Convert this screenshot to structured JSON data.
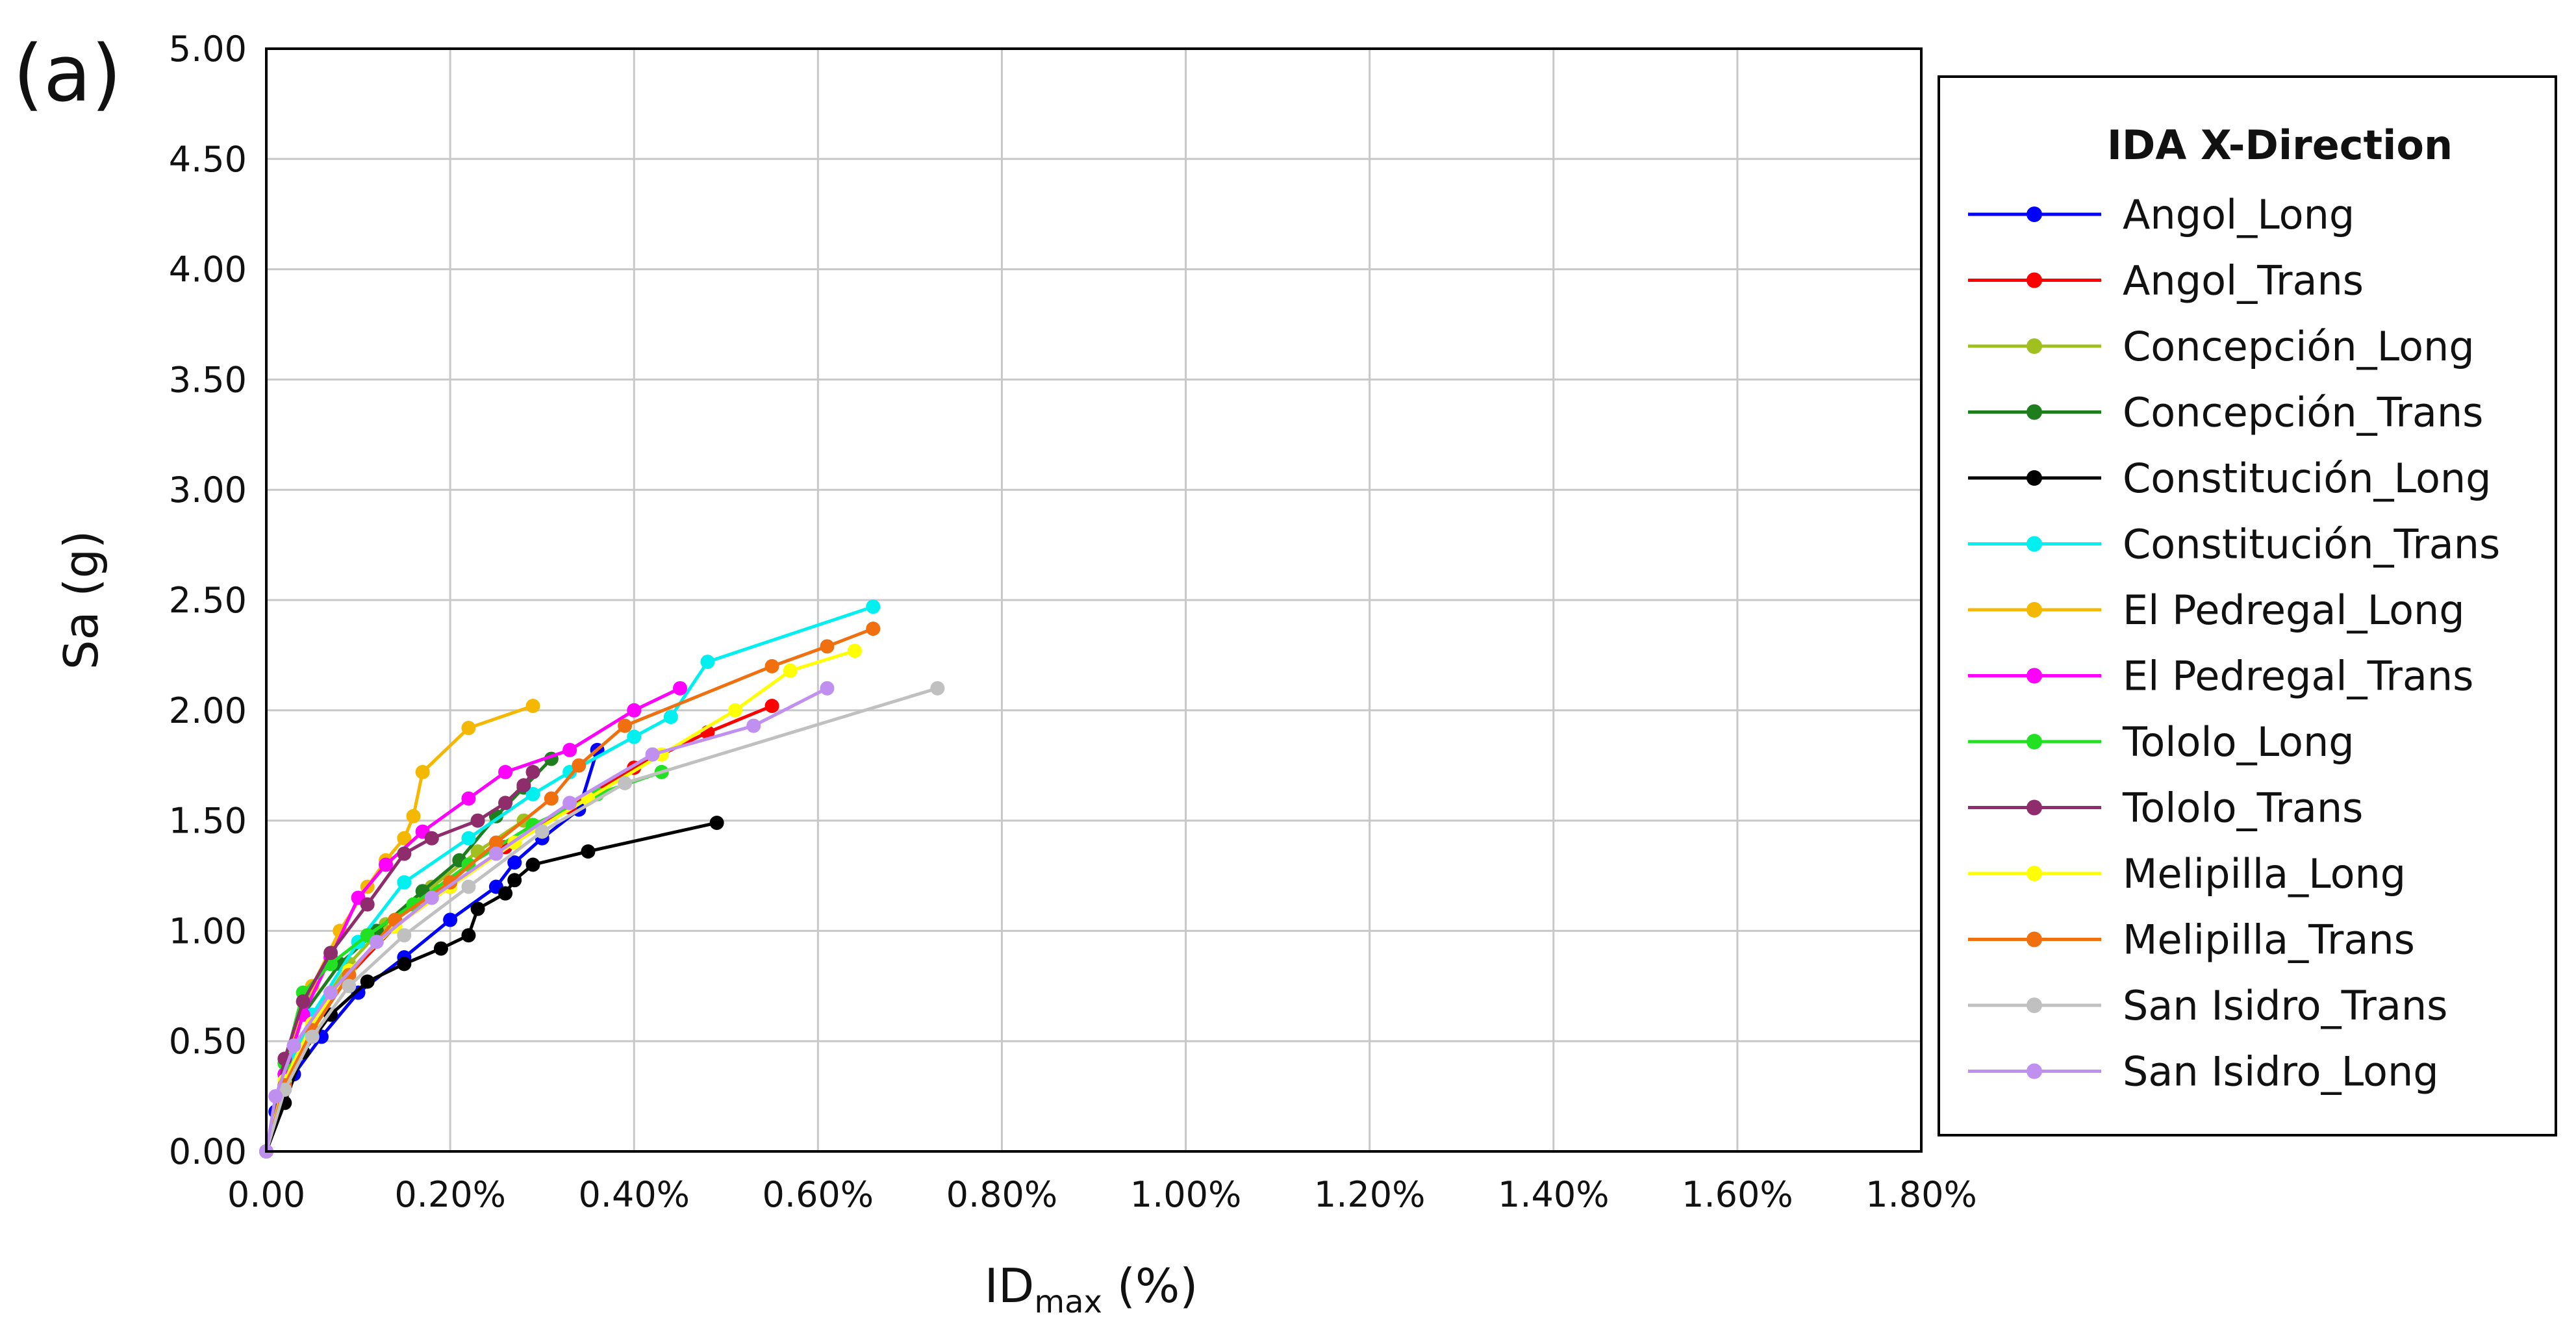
{
  "chart_data": {
    "type": "line",
    "panel_label": "(a)",
    "title": "",
    "xlabel": "ID",
    "xlabel_sub": "max",
    "xlabel_suffix": " (%)",
    "ylabel": "Sa (g)",
    "xlim": [
      0,
      1.8
    ],
    "ylim": [
      0,
      5
    ],
    "x_ticks": [
      0,
      0.2,
      0.4,
      0.6,
      0.8,
      1.0,
      1.2,
      1.4,
      1.6,
      1.8
    ],
    "x_tick_labels": [
      "0.00",
      "0.20%",
      "0.40%",
      "0.60%",
      "0.80%",
      "1.00%",
      "1.20%",
      "1.40%",
      "1.60%",
      "1.80%"
    ],
    "y_ticks": [
      0,
      0.5,
      1.0,
      1.5,
      2.0,
      2.5,
      3.0,
      3.5,
      4.0,
      4.5,
      5.0
    ],
    "y_tick_labels": [
      "0.00",
      "0.50",
      "1.00",
      "1.50",
      "2.00",
      "2.50",
      "3.00",
      "3.50",
      "4.00",
      "4.50",
      "5.00"
    ],
    "grid": true,
    "legend": {
      "title": "IDA X-Direction",
      "position": "right"
    },
    "series": [
      {
        "name": "Angol_Long",
        "color": "#0000ff",
        "x": [
          0,
          0.01,
          0.03,
          0.06,
          0.1,
          0.15,
          0.2,
          0.25,
          0.27,
          0.3,
          0.34,
          0.36
        ],
        "y": [
          0,
          0.18,
          0.35,
          0.52,
          0.72,
          0.88,
          1.05,
          1.2,
          1.31,
          1.42,
          1.55,
          1.82
        ]
      },
      {
        "name": "Angol_Trans",
        "color": "#ff0000",
        "x": [
          0,
          0.02,
          0.05,
          0.09,
          0.14,
          0.2,
          0.26,
          0.33,
          0.4,
          0.48,
          0.55
        ],
        "y": [
          0,
          0.3,
          0.55,
          0.8,
          1.02,
          1.2,
          1.38,
          1.56,
          1.74,
          1.9,
          2.02
        ]
      },
      {
        "name": "Concepción_Long",
        "color": "#a0c020",
        "x": [
          0,
          0.02,
          0.05,
          0.09,
          0.13,
          0.18,
          0.23,
          0.28
        ],
        "y": [
          0,
          0.3,
          0.6,
          0.85,
          1.03,
          1.2,
          1.36,
          1.5
        ]
      },
      {
        "name": "Concepción_Trans",
        "color": "#1e7e1e",
        "x": [
          0,
          0.02,
          0.04,
          0.08,
          0.12,
          0.17,
          0.21,
          0.25,
          0.28,
          0.31
        ],
        "y": [
          0,
          0.35,
          0.62,
          0.85,
          1.0,
          1.18,
          1.32,
          1.52,
          1.65,
          1.78
        ]
      },
      {
        "name": "Constitución_Long",
        "color": "#000000",
        "x": [
          0,
          0.02,
          0.04,
          0.07,
          0.11,
          0.15,
          0.19,
          0.22,
          0.23,
          0.26,
          0.27,
          0.29,
          0.35,
          0.49
        ],
        "y": [
          0,
          0.22,
          0.45,
          0.62,
          0.77,
          0.85,
          0.92,
          0.98,
          1.1,
          1.17,
          1.23,
          1.3,
          1.36,
          1.49
        ]
      },
      {
        "name": "Constitución_Trans",
        "color": "#00f0f0",
        "x": [
          0,
          0.02,
          0.05,
          0.1,
          0.15,
          0.22,
          0.29,
          0.33,
          0.4,
          0.44,
          0.48,
          0.66
        ],
        "y": [
          0,
          0.35,
          0.62,
          0.95,
          1.22,
          1.42,
          1.62,
          1.72,
          1.88,
          1.97,
          2.22,
          2.47
        ]
      },
      {
        "name": "El Pedregal_Long",
        "color": "#f5b800",
        "x": [
          0,
          0.02,
          0.05,
          0.08,
          0.11,
          0.13,
          0.15,
          0.16,
          0.17,
          0.22,
          0.29
        ],
        "y": [
          0,
          0.4,
          0.75,
          1.0,
          1.2,
          1.32,
          1.42,
          1.52,
          1.72,
          1.92,
          2.02
        ]
      },
      {
        "name": "El Pedregal_Trans",
        "color": "#ff00ff",
        "x": [
          0,
          0.02,
          0.04,
          0.07,
          0.1,
          0.13,
          0.17,
          0.22,
          0.26,
          0.33,
          0.4,
          0.45
        ],
        "y": [
          0,
          0.35,
          0.62,
          0.88,
          1.15,
          1.3,
          1.45,
          1.6,
          1.72,
          1.82,
          2.0,
          2.1
        ]
      },
      {
        "name": "Tololo_Long",
        "color": "#22e022",
        "x": [
          0,
          0.02,
          0.04,
          0.07,
          0.11,
          0.16,
          0.22,
          0.29,
          0.36,
          0.43
        ],
        "y": [
          0,
          0.4,
          0.72,
          0.85,
          0.98,
          1.12,
          1.3,
          1.48,
          1.62,
          1.72
        ]
      },
      {
        "name": "Tololo_Trans",
        "color": "#8e2c6c",
        "x": [
          0,
          0.02,
          0.04,
          0.07,
          0.11,
          0.15,
          0.18,
          0.23,
          0.26,
          0.28,
          0.29
        ],
        "y": [
          0,
          0.42,
          0.68,
          0.9,
          1.12,
          1.35,
          1.42,
          1.5,
          1.58,
          1.66,
          1.72
        ]
      },
      {
        "name": "Melipilla_Long",
        "color": "#ffff00",
        "x": [
          0,
          0.02,
          0.05,
          0.09,
          0.14,
          0.2,
          0.27,
          0.35,
          0.43,
          0.51,
          0.57,
          0.64
        ],
        "y": [
          0,
          0.32,
          0.58,
          0.82,
          1.02,
          1.2,
          1.4,
          1.6,
          1.8,
          2.0,
          2.18,
          2.27
        ]
      },
      {
        "name": "Melipilla_Trans",
        "color": "#f07010",
        "x": [
          0,
          0.02,
          0.05,
          0.09,
          0.14,
          0.2,
          0.25,
          0.31,
          0.34,
          0.39,
          0.55,
          0.61,
          0.66
        ],
        "y": [
          0,
          0.3,
          0.55,
          0.8,
          1.05,
          1.22,
          1.4,
          1.6,
          1.75,
          1.93,
          2.2,
          2.29,
          2.37
        ]
      },
      {
        "name": "San Isidro_Trans",
        "color": "#c0c0c0",
        "x": [
          0,
          0.02,
          0.05,
          0.09,
          0.15,
          0.22,
          0.3,
          0.39,
          0.73
        ],
        "y": [
          0,
          0.28,
          0.52,
          0.75,
          0.98,
          1.2,
          1.45,
          1.67,
          2.1
        ]
      },
      {
        "name": "San Isidro_Long",
        "color": "#c090f0",
        "x": [
          0,
          0.01,
          0.03,
          0.07,
          0.12,
          0.18,
          0.25,
          0.33,
          0.42,
          0.53,
          0.61
        ],
        "y": [
          0,
          0.25,
          0.48,
          0.72,
          0.95,
          1.15,
          1.35,
          1.58,
          1.8,
          1.93,
          2.1
        ]
      }
    ]
  }
}
